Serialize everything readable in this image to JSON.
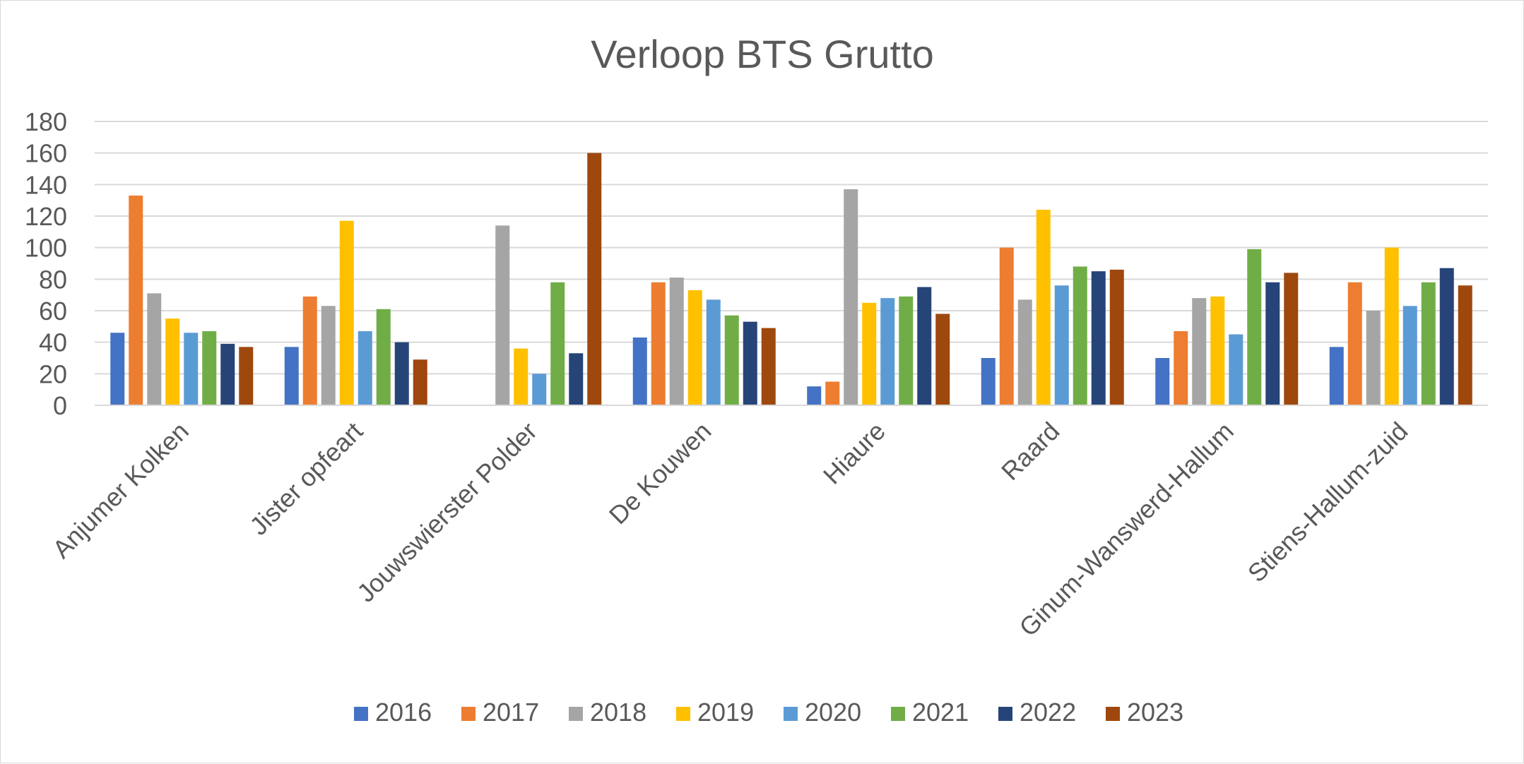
{
  "chart_data": {
    "type": "bar",
    "title": "Verloop BTS Grutto",
    "xlabel": "",
    "ylabel": "",
    "ylim": [
      0,
      180
    ],
    "yticks": [
      0,
      20,
      40,
      60,
      80,
      100,
      120,
      140,
      160,
      180
    ],
    "grid": true,
    "legend_position": "bottom",
    "categories": [
      "Anjumer Kolken",
      "Jister opfeart",
      "Jouwswierster Polder",
      "De Kouwen",
      "Hiaure",
      "Raard",
      "Ginum-Wanswerd-Hallum",
      "Stiens-Hallum-zuid"
    ],
    "series": [
      {
        "name": "2016",
        "color": "#4472C4",
        "values": [
          46,
          37,
          null,
          43,
          12,
          30,
          30,
          37
        ]
      },
      {
        "name": "2017",
        "color": "#ED7D31",
        "values": [
          133,
          69,
          null,
          78,
          15,
          100,
          47,
          78
        ]
      },
      {
        "name": "2018",
        "color": "#A5A5A5",
        "values": [
          71,
          63,
          114,
          81,
          137,
          67,
          68,
          60
        ]
      },
      {
        "name": "2019",
        "color": "#FFC000",
        "values": [
          55,
          117,
          36,
          73,
          65,
          124,
          69,
          100
        ]
      },
      {
        "name": "2020",
        "color": "#5B9BD5",
        "values": [
          46,
          47,
          20,
          67,
          68,
          76,
          45,
          63
        ]
      },
      {
        "name": "2021",
        "color": "#70AD47",
        "values": [
          47,
          61,
          78,
          57,
          69,
          88,
          99,
          78
        ]
      },
      {
        "name": "2022",
        "color": "#264478",
        "values": [
          39,
          40,
          33,
          53,
          75,
          85,
          78,
          87
        ]
      },
      {
        "name": "2023",
        "color": "#9E480E",
        "values": [
          37,
          29,
          160,
          49,
          58,
          86,
          84,
          76
        ]
      }
    ]
  }
}
